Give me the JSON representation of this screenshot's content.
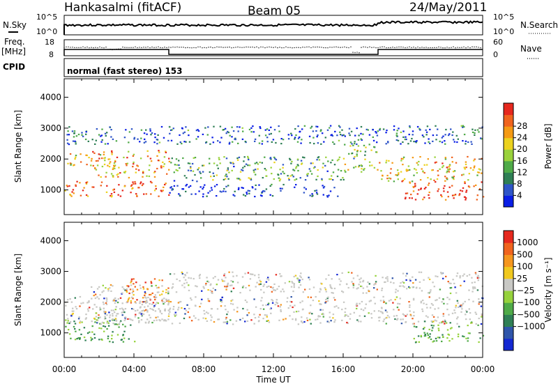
{
  "header": {
    "station": "Hankasalmi (fitACF)",
    "beam": "Beam 05",
    "date": "24/May/2011"
  },
  "top_panels": {
    "nsky_label": "N.Sky",
    "nsky_ticks": [
      "10^5",
      "10^0"
    ],
    "nsearch_label": "N.Search",
    "nsearch_ticks": [
      "10^5",
      "10^0"
    ],
    "freq_label_1": "Freq.",
    "freq_label_2": "[MHz]",
    "freq_ticks": [
      "18",
      "8"
    ],
    "nave_label": "Nave",
    "nave_ticks": [
      "60",
      "0"
    ],
    "cpid_label": "CPID",
    "cpid_value": "normal (fast stereo) 153"
  },
  "chart_data": [
    {
      "type": "heatmap",
      "name": "power",
      "ylabel": "Slant Range [km]",
      "xlabel": "Time UT",
      "ylim": [
        200,
        4600
      ],
      "xlim": [
        0,
        24
      ],
      "y_ticks": [
        "1000",
        "2000",
        "3000",
        "4000"
      ],
      "x_ticks": [
        "00:00",
        "04:00",
        "08:00",
        "12:00",
        "16:00",
        "20:00",
        "00:00"
      ],
      "colorbar_label": "Power [dB]",
      "colorbar_ticks": [
        "4",
        "8",
        "12",
        "16",
        "20",
        "24",
        "28"
      ],
      "colorbar_colors": [
        "#0a1ee6",
        "#2f55c8",
        "#2f7f55",
        "#4faa48",
        "#9ad23c",
        "#ecd21e",
        "#f59a14",
        "#f0641e",
        "#e6281e"
      ],
      "scatter_bands": [
        {
          "t0": 0.0,
          "t1": 6.0,
          "r0": 800,
          "r1": 1300,
          "level": 0.85
        },
        {
          "t0": 0.0,
          "t1": 2.5,
          "r0": 1800,
          "r1": 2200,
          "level": 0.6
        },
        {
          "t0": 1.5,
          "t1": 6.0,
          "r0": 1400,
          "r1": 2300,
          "level": 0.7
        },
        {
          "t0": 6.0,
          "t1": 16.0,
          "r0": 1300,
          "r1": 2100,
          "level": 0.35
        },
        {
          "t0": 6.0,
          "t1": 16.0,
          "r0": 800,
          "r1": 1200,
          "level": 0.1
        },
        {
          "t0": 16.0,
          "t1": 18.0,
          "r0": 1600,
          "r1": 2500,
          "level": 0.45
        },
        {
          "t0": 18.0,
          "t1": 24.0,
          "r0": 1300,
          "r1": 2100,
          "level": 0.65
        },
        {
          "t0": 19.5,
          "t1": 24.0,
          "r0": 700,
          "r1": 1300,
          "level": 0.9
        },
        {
          "t0": 0.0,
          "t1": 24.0,
          "r0": 2500,
          "r1": 3100,
          "level": 0.2
        }
      ]
    },
    {
      "type": "heatmap",
      "name": "velocity",
      "ylabel": "Slant Range [km]",
      "xlabel": "Time UT",
      "ylim": [
        200,
        4600
      ],
      "xlim": [
        0,
        24
      ],
      "y_ticks": [
        "1000",
        "2000",
        "3000",
        "4000"
      ],
      "x_ticks": [
        "00:00",
        "04:00",
        "08:00",
        "12:00",
        "16:00",
        "20:00",
        "00:00"
      ],
      "colorbar_label": "Velocity [m s⁻¹]",
      "colorbar_ticks": [
        "1000",
        "500",
        "100",
        "25",
        "−25",
        "−100",
        "−500",
        "−1000"
      ],
      "colorbar_colors": [
        "#1428d2",
        "#2f55aa",
        "#2f7f55",
        "#4faa48",
        "#96d23c",
        "#c8c8c4",
        "#f0c81e",
        "#f5961e",
        "#f0641e",
        "#e6281e"
      ],
      "scatter_bands": [
        {
          "t0": 0.0,
          "t1": 4.0,
          "r0": 700,
          "r1": 1500,
          "level": 0.3
        },
        {
          "t0": 1.5,
          "t1": 6.0,
          "r0": 1400,
          "r1": 2600,
          "level": 0.45
        },
        {
          "t0": 3.5,
          "t1": 6.0,
          "r0": 2000,
          "r1": 2800,
          "level": 0.8
        },
        {
          "t0": 0.0,
          "t1": 24.0,
          "r0": 1300,
          "r1": 2200,
          "level": 0.5
        },
        {
          "t0": 6.0,
          "t1": 24.0,
          "r0": 2300,
          "r1": 3000,
          "level": 0.5
        },
        {
          "t0": 20.0,
          "t1": 24.0,
          "r0": 700,
          "r1": 1400,
          "level": 0.3
        }
      ]
    }
  ]
}
